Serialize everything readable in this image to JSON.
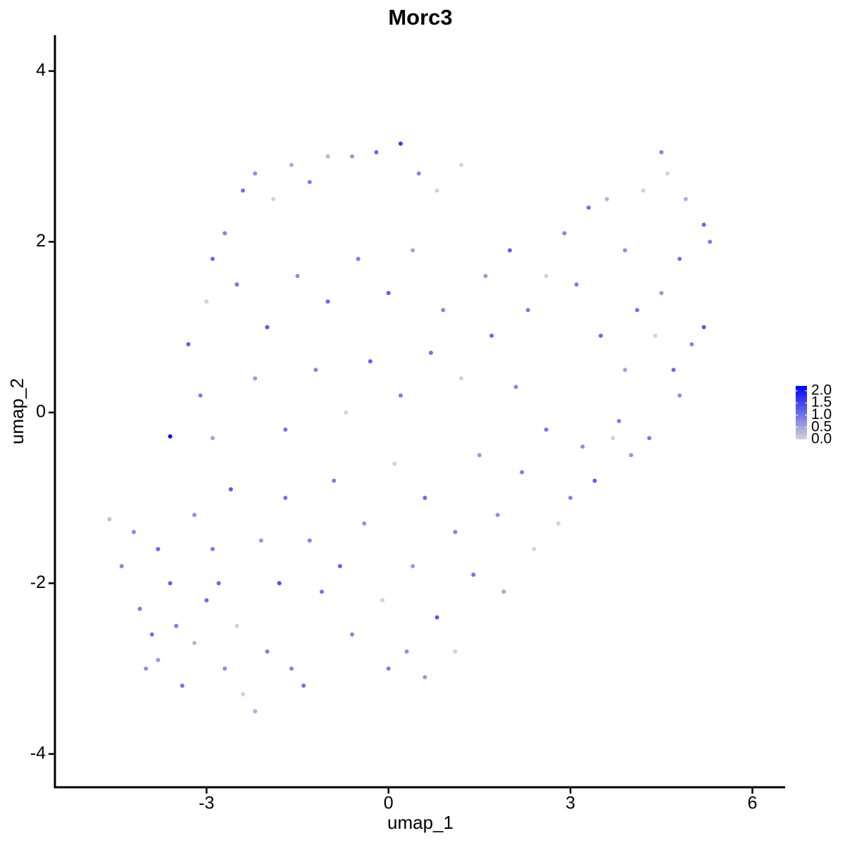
{
  "chart_data": {
    "type": "scatter",
    "title": "Morc3",
    "x_label": "umap_1",
    "y_label": "umap_2",
    "xlim": [
      -5.5,
      6.54
    ],
    "ylim": [
      -4.39,
      4.42
    ],
    "xticks": [
      -3,
      0,
      3,
      6
    ],
    "yticks": [
      -4,
      -2,
      0,
      2,
      4
    ],
    "low_color": "#d3d3d3",
    "high_color": "#0000ff",
    "color_lim": [
      0,
      2.2
    ],
    "color_ticks": [
      {
        "value": 0,
        "label": "0.0"
      },
      {
        "value": 0.5,
        "label": "0.5"
      },
      {
        "value": 1,
        "label": "1.0"
      },
      {
        "value": 1.5,
        "label": "1.5"
      },
      {
        "value": 2,
        "label": "2.0"
      }
    ],
    "x": [
      -4.6,
      -4.4,
      -4.1,
      -3.9,
      -3.8,
      -3.6,
      -3.6,
      -3.4,
      -3.2,
      -3.0,
      -2.9,
      -2.7,
      -2.6,
      -2.5,
      -2.4,
      -2.2,
      -2.0,
      -1.8,
      -1.6,
      -1.4,
      -3.2,
      -3.8,
      -4.2,
      -2.1,
      -1.7,
      -3.3,
      -3.1,
      -2.9,
      -3.0,
      -2.9,
      -2.7,
      -2.4,
      -2.2,
      -1.9,
      -1.6,
      -1.3,
      -1.0,
      -0.6,
      -0.2,
      0.2,
      0.5,
      0.8,
      1.2,
      -2.5,
      -2.0,
      -1.5,
      -1.0,
      -0.5,
      0.0,
      0.4,
      0.9,
      -2.2,
      -1.7,
      -1.2,
      -0.7,
      -0.3,
      0.2,
      0.7,
      1.2,
      -0.9,
      -0.4,
      0.1,
      0.6,
      1.1,
      1.5,
      -1.1,
      -0.6,
      -0.1,
      0.3,
      0.8,
      0.0,
      0.6,
      1.1,
      1.4,
      1.8,
      2.2,
      1.9,
      2.4,
      2.6,
      2.1,
      1.7,
      2.3,
      2.0,
      1.6,
      2.6,
      2.9,
      3.3,
      3.6,
      3.1,
      3.5,
      3.2,
      3.0,
      3.4,
      2.8,
      3.8,
      3.9,
      4.1,
      3.9,
      4.2,
      4.5,
      4.6,
      4.9,
      5.2,
      5.3,
      4.8,
      4.5,
      4.4,
      4.7,
      5.0,
      5.2,
      4.8,
      4.3,
      4.0,
      3.7,
      -4.0,
      -3.5,
      -2.8,
      -1.3,
      -0.8,
      0.4
    ],
    "y": [
      -1.25,
      -1.8,
      -2.3,
      -2.6,
      -2.9,
      -2.0,
      -0.28,
      -3.2,
      -2.7,
      -2.2,
      -1.6,
      -3.0,
      -0.9,
      -2.5,
      -3.3,
      -3.5,
      -2.8,
      -2.0,
      -3.0,
      -3.2,
      -1.2,
      -1.6,
      -1.4,
      -1.5,
      -1.0,
      0.8,
      0.2,
      -0.3,
      1.3,
      1.8,
      2.1,
      2.6,
      2.8,
      2.5,
      2.9,
      2.7,
      3.0,
      3.0,
      3.05,
      3.15,
      2.8,
      2.6,
      2.9,
      1.5,
      1.0,
      1.6,
      1.3,
      1.8,
      1.4,
      1.9,
      1.2,
      0.4,
      -0.2,
      0.5,
      0.0,
      0.6,
      0.2,
      0.7,
      0.4,
      -0.8,
      -1.3,
      -0.6,
      -1.0,
      -1.4,
      -0.5,
      -2.1,
      -2.6,
      -2.2,
      -2.8,
      -2.4,
      -3.0,
      -3.1,
      -2.8,
      -1.9,
      -1.2,
      -0.7,
      -2.1,
      -1.6,
      -0.2,
      0.3,
      0.9,
      1.2,
      1.9,
      1.6,
      1.6,
      2.1,
      2.4,
      2.5,
      1.5,
      0.9,
      -0.4,
      -1.0,
      -0.8,
      -1.3,
      -0.1,
      0.5,
      1.2,
      1.9,
      2.6,
      3.05,
      2.8,
      2.5,
      2.2,
      2.0,
      1.8,
      1.4,
      0.9,
      0.5,
      0.8,
      1.0,
      0.2,
      -0.3,
      -0.5,
      -0.3,
      -3.0,
      -2.5,
      -2.0,
      -1.5,
      -1.8,
      -1.8
    ],
    "expression": [
      0.2,
      0.8,
      0.9,
      1.0,
      0.6,
      1.2,
      2.1,
      1.0,
      0.3,
      1.1,
      0.9,
      0.7,
      1.3,
      0.0,
      0.0,
      0.4,
      0.9,
      1.4,
      0.8,
      1.0,
      0.7,
      1.1,
      0.8,
      0.6,
      1.0,
      1.2,
      0.9,
      0.5,
      0.0,
      1.1,
      0.8,
      1.0,
      0.7,
      0.0,
      0.4,
      0.9,
      0.3,
      0.6,
      1.1,
      1.6,
      0.8,
      0.0,
      0.0,
      1.0,
      1.3,
      0.7,
      1.1,
      0.9,
      1.2,
      0.5,
      0.8,
      0.6,
      1.0,
      0.8,
      0.0,
      1.2,
      0.9,
      1.0,
      0.0,
      0.9,
      0.7,
      0.0,
      1.1,
      0.8,
      0.6,
      1.0,
      0.8,
      0.0,
      0.7,
      1.3,
      0.9,
      0.6,
      0.0,
      1.0,
      0.7,
      0.9,
      0.5,
      0.0,
      1.0,
      0.8,
      1.1,
      0.9,
      1.2,
      0.6,
      0.0,
      0.8,
      1.0,
      0.3,
      0.9,
      1.1,
      0.7,
      0.8,
      1.2,
      0.0,
      0.9,
      0.5,
      1.0,
      0.7,
      0.0,
      0.8,
      0.0,
      0.4,
      1.1,
      0.9,
      1.0,
      0.6,
      0.0,
      1.1,
      0.8,
      1.3,
      0.7,
      0.9,
      0.6,
      0.0,
      0.7,
      0.9,
      1.1,
      0.8,
      1.2,
      0.6
    ]
  }
}
